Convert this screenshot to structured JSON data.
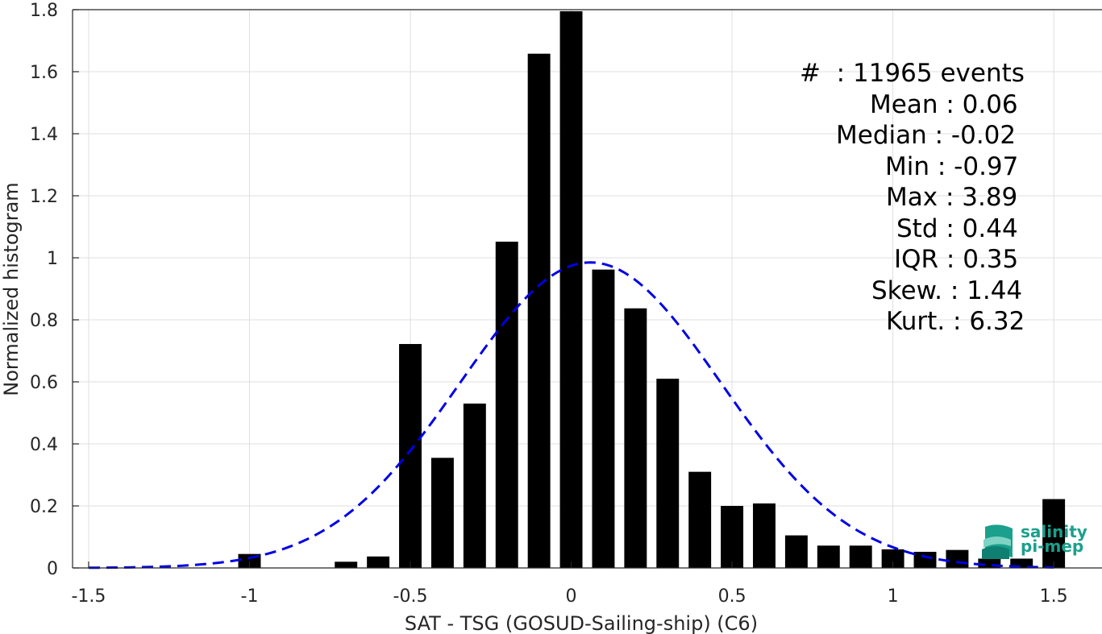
{
  "chart_data": {
    "type": "bar",
    "xlabel": "SAT - TSG (GOSUD-Sailing-ship) (C6)",
    "ylabel": "Normalized histogram",
    "xlim": [
      -1.55,
      1.65
    ],
    "ylim": [
      0,
      1.8
    ],
    "x_ticks": [
      -1.5,
      -1,
      -0.5,
      0,
      0.5,
      1,
      1.5
    ],
    "x_tick_labels": [
      "-1.5",
      "-1",
      "-0.5",
      "0",
      "0.5",
      "1",
      "1.5"
    ],
    "y_ticks": [
      0,
      0.2,
      0.4,
      0.6,
      0.8,
      1,
      1.2,
      1.4,
      1.6,
      1.8
    ],
    "y_tick_labels": [
      "0",
      "0.2",
      "0.4",
      "0.6",
      "0.8",
      "1",
      "1.2",
      "1.4",
      "1.6",
      "1.8"
    ],
    "grid": true,
    "bar_color": "#000000",
    "bar_width": 0.07,
    "bins": [
      {
        "x": -1.0,
        "value": 0.045
      },
      {
        "x": -0.7,
        "value": 0.02
      },
      {
        "x": -0.6,
        "value": 0.037
      },
      {
        "x": -0.5,
        "value": 0.722
      },
      {
        "x": -0.4,
        "value": 0.355
      },
      {
        "x": -0.3,
        "value": 0.53
      },
      {
        "x": -0.2,
        "value": 1.052
      },
      {
        "x": -0.1,
        "value": 1.658
      },
      {
        "x": 0.0,
        "value": 1.795
      },
      {
        "x": 0.1,
        "value": 0.962
      },
      {
        "x": 0.2,
        "value": 0.837
      },
      {
        "x": 0.3,
        "value": 0.61
      },
      {
        "x": 0.4,
        "value": 0.31
      },
      {
        "x": 0.5,
        "value": 0.2
      },
      {
        "x": 0.6,
        "value": 0.208
      },
      {
        "x": 0.7,
        "value": 0.105
      },
      {
        "x": 0.8,
        "value": 0.072
      },
      {
        "x": 0.9,
        "value": 0.072
      },
      {
        "x": 1.0,
        "value": 0.06
      },
      {
        "x": 1.1,
        "value": 0.052
      },
      {
        "x": 1.2,
        "value": 0.058
      },
      {
        "x": 1.3,
        "value": 0.03
      },
      {
        "x": 1.4,
        "value": 0.03
      },
      {
        "x": 1.5,
        "value": 0.222
      }
    ],
    "fit_curve": {
      "style": "dashed",
      "color": "#0000e6",
      "mean": 0.06,
      "std": 0.405,
      "x_range": [
        -1.5,
        1.5
      ]
    },
    "stats_lines": [
      "#  : 11965 events",
      "Mean : 0.06",
      "Median : -0.02",
      "Min : -0.97",
      "Max : 3.89",
      "Std : 0.44",
      "IQR : 0.35",
      "Skew. : 1.44",
      "Kurt. : 6.32"
    ]
  },
  "logo": {
    "line1": "salinity",
    "line2": "pi-mep",
    "color": "#1aa08c"
  }
}
